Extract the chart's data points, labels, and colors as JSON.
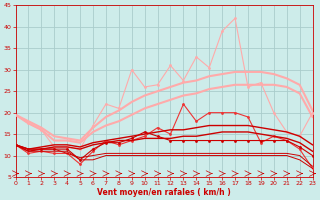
{
  "x": [
    0,
    1,
    2,
    3,
    4,
    5,
    6,
    7,
    8,
    9,
    10,
    11,
    12,
    13,
    14,
    15,
    16,
    17,
    18,
    19,
    20,
    21,
    22,
    23
  ],
  "line_pink_smooth_low": [
    19.5,
    17.5,
    16.0,
    13.5,
    13.5,
    13.0,
    15.5,
    17.0,
    18.0,
    19.5,
    21.0,
    22.0,
    23.0,
    24.0,
    24.5,
    25.5,
    26.0,
    26.5,
    26.5,
    26.5,
    26.5,
    26.0,
    24.5,
    19.0
  ],
  "line_pink_smooth_high": [
    19.5,
    18.0,
    16.5,
    14.5,
    14.0,
    13.5,
    16.5,
    19.0,
    20.5,
    22.5,
    24.0,
    25.0,
    26.0,
    27.0,
    27.5,
    28.5,
    29.0,
    29.5,
    29.5,
    29.5,
    29.0,
    28.0,
    26.5,
    20.5
  ],
  "line_pink_jagged": [
    19.5,
    17.5,
    16.0,
    12.0,
    12.0,
    11.5,
    17.0,
    22.0,
    21.0,
    30.0,
    26.0,
    26.5,
    31.0,
    27.5,
    33.0,
    30.5,
    39.0,
    42.0,
    26.0,
    27.0,
    20.0,
    15.5,
    14.5,
    20.0
  ],
  "line_red_jagged": [
    12.5,
    10.5,
    11.0,
    10.5,
    10.5,
    8.0,
    11.0,
    13.5,
    12.5,
    13.5,
    14.5,
    16.5,
    15.0,
    22.0,
    18.0,
    20.0,
    20.0,
    20.0,
    19.0,
    13.0,
    14.5,
    13.5,
    11.5,
    7.0
  ],
  "line_dark_smooth1": [
    12.5,
    11.0,
    11.5,
    12.0,
    12.0,
    11.5,
    12.5,
    13.0,
    13.5,
    13.5,
    14.0,
    14.0,
    14.0,
    14.5,
    14.5,
    15.0,
    15.5,
    15.5,
    15.5,
    15.0,
    14.5,
    14.0,
    13.0,
    11.0
  ],
  "line_dark_smooth2": [
    12.5,
    11.5,
    12.0,
    12.5,
    12.5,
    12.0,
    13.0,
    13.5,
    14.0,
    14.5,
    15.0,
    15.5,
    16.0,
    16.0,
    16.5,
    17.0,
    17.0,
    17.0,
    17.0,
    16.5,
    16.0,
    15.5,
    14.5,
    12.5
  ],
  "line_dark_step": [
    12.5,
    11.0,
    11.0,
    11.0,
    11.0,
    9.0,
    9.0,
    10.0,
    10.0,
    10.0,
    10.0,
    10.0,
    10.0,
    10.0,
    10.0,
    10.0,
    10.0,
    10.0,
    10.0,
    10.0,
    10.0,
    10.0,
    9.0,
    7.0
  ],
  "line_dark_step2": [
    12.5,
    11.5,
    11.5,
    11.5,
    10.5,
    9.5,
    10.0,
    10.5,
    10.5,
    10.5,
    10.5,
    10.5,
    10.5,
    10.5,
    10.5,
    10.5,
    10.5,
    10.5,
    10.5,
    10.5,
    10.5,
    10.5,
    10.0,
    7.5
  ],
  "line_dark_dot_mid": [
    12.5,
    11.5,
    11.5,
    11.5,
    11.5,
    9.0,
    11.5,
    13.0,
    13.0,
    14.0,
    15.5,
    14.5,
    13.5,
    13.5,
    13.5,
    13.5,
    13.5,
    13.5,
    13.5,
    13.5,
    13.5,
    13.5,
    12.0,
    10.0
  ],
  "background_color": "#cdecea",
  "grid_color": "#aacccc",
  "color_pink": "#ffaaaa",
  "color_darkred": "#cc0000",
  "color_red": "#ee3333",
  "xlabel": "Vent moyen/en rafales ( km/h )",
  "ylim": [
    5,
    45
  ],
  "xlim": [
    0,
    23
  ],
  "yticks": [
    5,
    10,
    15,
    20,
    25,
    30,
    35,
    40,
    45
  ],
  "xticks": [
    0,
    1,
    2,
    3,
    4,
    5,
    6,
    7,
    8,
    9,
    10,
    11,
    12,
    13,
    14,
    15,
    16,
    17,
    18,
    19,
    20,
    21,
    22,
    23
  ]
}
